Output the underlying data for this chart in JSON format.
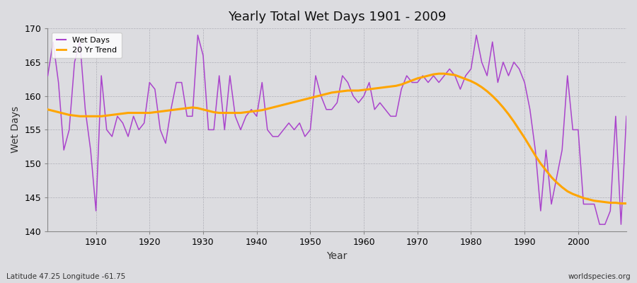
{
  "title": "Yearly Total Wet Days 1901 - 2009",
  "xlabel": "Year",
  "ylabel": "Wet Days",
  "subtitle": "Latitude 47.25 Longitude -61.75",
  "watermark": "worldspecies.org",
  "line_color": "#aa44cc",
  "trend_color": "#FFA500",
  "bg_color": "#e8e8ec",
  "plot_bg": "#e8e8ec",
  "ylim": [
    140,
    170
  ],
  "xlim": [
    1901,
    2009
  ],
  "yticks": [
    140,
    145,
    150,
    155,
    160,
    165,
    170
  ],
  "xticks": [
    1910,
    1920,
    1930,
    1940,
    1950,
    1960,
    1970,
    1980,
    1990,
    2000
  ],
  "wet_days": [
    163,
    168,
    162,
    152,
    155,
    165,
    168,
    158,
    152,
    143,
    163,
    155,
    154,
    157,
    156,
    154,
    157,
    155,
    156,
    162,
    161,
    155,
    153,
    158,
    162,
    162,
    157,
    157,
    169,
    166,
    155,
    155,
    163,
    155,
    163,
    157,
    155,
    157,
    158,
    157,
    162,
    155,
    154,
    154,
    155,
    156,
    155,
    156,
    154,
    155,
    163,
    160,
    158,
    158,
    159,
    163,
    162,
    160,
    159,
    160,
    162,
    158,
    159,
    158,
    157,
    157,
    161,
    163,
    162,
    162,
    163,
    162,
    163,
    162,
    163,
    164,
    163,
    161,
    163,
    164,
    169,
    165,
    163,
    168,
    162,
    165,
    163,
    165,
    164,
    162,
    158,
    152,
    143,
    152,
    144,
    148,
    152,
    163,
    155,
    155,
    144,
    144,
    144,
    141,
    141,
    143,
    157,
    141,
    157
  ],
  "trend": [
    158.0,
    157.8,
    157.6,
    157.4,
    157.2,
    157.1,
    157.0,
    157.0,
    157.0,
    157.0,
    157.0,
    157.1,
    157.2,
    157.3,
    157.4,
    157.5,
    157.5,
    157.5,
    157.5,
    157.5,
    157.6,
    157.7,
    157.8,
    157.9,
    158.0,
    158.1,
    158.2,
    158.3,
    158.2,
    158.0,
    157.8,
    157.6,
    157.5,
    157.5,
    157.5,
    157.5,
    157.5,
    157.6,
    157.7,
    157.8,
    157.9,
    158.1,
    158.3,
    158.5,
    158.7,
    158.9,
    159.1,
    159.3,
    159.5,
    159.7,
    159.9,
    160.1,
    160.3,
    160.5,
    160.6,
    160.7,
    160.8,
    160.8,
    160.8,
    160.9,
    161.0,
    161.1,
    161.2,
    161.3,
    161.4,
    161.5,
    161.7,
    162.0,
    162.3,
    162.6,
    162.8,
    163.0,
    163.2,
    163.3,
    163.3,
    163.2,
    163.1,
    162.8,
    162.5,
    162.2,
    161.8,
    161.3,
    160.7,
    160.0,
    159.2,
    158.3,
    157.3,
    156.2,
    155.0,
    153.8,
    152.5,
    151.2,
    150.0,
    149.0,
    148.0,
    147.2,
    146.5,
    145.9,
    145.5,
    145.2,
    144.9,
    144.7,
    144.5,
    144.4,
    144.3,
    144.2,
    144.2,
    144.1,
    144.1
  ]
}
